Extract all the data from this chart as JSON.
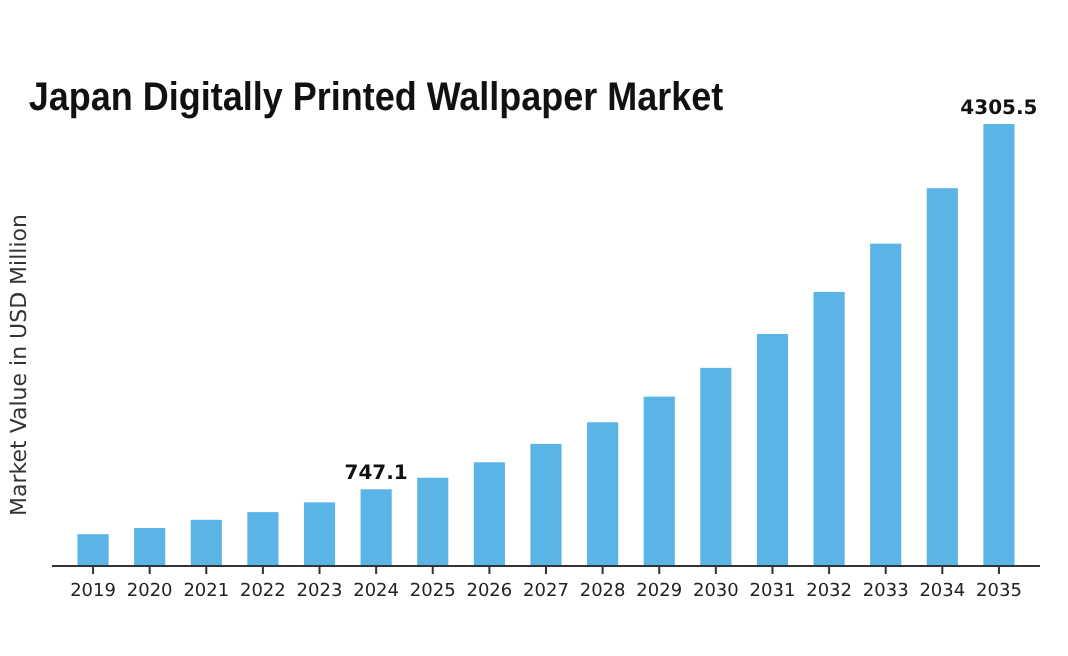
{
  "chart_data": {
    "type": "bar",
    "title": "Japan Digitally Printed Wallpaper Market",
    "ylabel": "Market Value in USD Million",
    "categories": [
      "2019",
      "2020",
      "2021",
      "2022",
      "2023",
      "2024",
      "2025",
      "2026",
      "2027",
      "2028",
      "2029",
      "2030",
      "2031",
      "2032",
      "2033",
      "2034",
      "2035"
    ],
    "values": [
      310,
      370,
      450,
      525,
      620,
      747.1,
      860,
      1010,
      1190,
      1400,
      1650,
      1930,
      2260,
      2670,
      3140,
      3680,
      4305.5
    ],
    "value_labels": [
      null,
      null,
      null,
      null,
      null,
      "747.1",
      null,
      null,
      null,
      null,
      null,
      null,
      null,
      null,
      null,
      null,
      "4305.5"
    ],
    "color": "#5ab4e6",
    "ylim": [
      0,
      4305.5
    ],
    "tick_labels": "x"
  }
}
